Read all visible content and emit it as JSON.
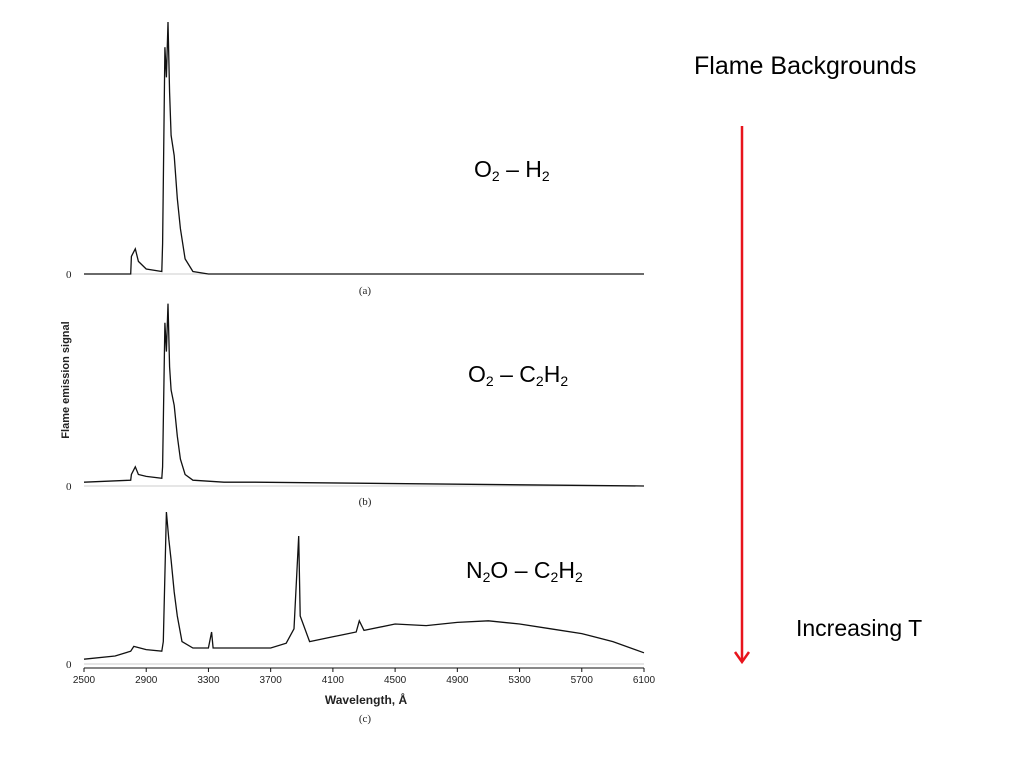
{
  "slide": {
    "title": "Flame Backgrounds",
    "trend_label": "Increasing T",
    "arrow_color": "#e8141c",
    "flames": [
      {
        "ox1": "O",
        "ox1_sub": "2",
        "dash": " – ",
        "fuel1": "H",
        "fuel1_sub": "2",
        "fuel2": "",
        "fuel2_sub": ""
      },
      {
        "ox1": "O",
        "ox1_sub": "2",
        "dash": " – ",
        "fuel1": "C",
        "fuel1_sub": "2",
        "fuel2": "H",
        "fuel2_sub": "2"
      },
      {
        "ox1": "N",
        "ox1_sub": "2",
        "ox2": "O",
        "dash": " – ",
        "fuel1": "C",
        "fuel1_sub": "2",
        "fuel2": "H",
        "fuel2_sub": "2"
      }
    ]
  },
  "chart_data": {
    "type": "line",
    "ylabel": "Flame emission signal",
    "xlabel": "Wavelength, Å",
    "xlim": [
      2500,
      6100
    ],
    "x_ticks": [
      "2500",
      "2900",
      "3300",
      "3700",
      "4100",
      "4500",
      "4900",
      "5300",
      "5700",
      "6100"
    ],
    "zero_label": "0",
    "panels": [
      {
        "label": "(a)",
        "points": [
          [
            2500,
            0
          ],
          [
            2800,
            0
          ],
          [
            2805,
            0.07
          ],
          [
            2830,
            0.1
          ],
          [
            2850,
            0.05
          ],
          [
            2900,
            0.02
          ],
          [
            3000,
            0.01
          ],
          [
            3005,
            0.12
          ],
          [
            3020,
            0.9
          ],
          [
            3030,
            0.78
          ],
          [
            3040,
            1.0
          ],
          [
            3050,
            0.72
          ],
          [
            3060,
            0.55
          ],
          [
            3080,
            0.47
          ],
          [
            3100,
            0.3
          ],
          [
            3120,
            0.18
          ],
          [
            3150,
            0.06
          ],
          [
            3200,
            0.01
          ],
          [
            3300,
            0
          ],
          [
            6100,
            0
          ]
        ]
      },
      {
        "label": "(b)",
        "points": [
          [
            2500,
            0.02
          ],
          [
            2800,
            0.03
          ],
          [
            2805,
            0.06
          ],
          [
            2830,
            0.1
          ],
          [
            2850,
            0.06
          ],
          [
            2900,
            0.05
          ],
          [
            3000,
            0.04
          ],
          [
            3005,
            0.1
          ],
          [
            3020,
            0.85
          ],
          [
            3030,
            0.7
          ],
          [
            3040,
            0.95
          ],
          [
            3050,
            0.62
          ],
          [
            3060,
            0.5
          ],
          [
            3080,
            0.42
          ],
          [
            3100,
            0.26
          ],
          [
            3120,
            0.14
          ],
          [
            3150,
            0.06
          ],
          [
            3200,
            0.03
          ],
          [
            3400,
            0.02
          ],
          [
            3600,
            0.02
          ],
          [
            6100,
            0
          ]
        ]
      },
      {
        "label": "(c)",
        "points": [
          [
            2500,
            0.03
          ],
          [
            2700,
            0.05
          ],
          [
            2800,
            0.08
          ],
          [
            2820,
            0.11
          ],
          [
            2900,
            0.09
          ],
          [
            3000,
            0.08
          ],
          [
            3010,
            0.14
          ],
          [
            3030,
            0.95
          ],
          [
            3045,
            0.78
          ],
          [
            3060,
            0.65
          ],
          [
            3080,
            0.45
          ],
          [
            3100,
            0.3
          ],
          [
            3130,
            0.14
          ],
          [
            3200,
            0.1
          ],
          [
            3300,
            0.1
          ],
          [
            3320,
            0.2
          ],
          [
            3330,
            0.1
          ],
          [
            3600,
            0.1
          ],
          [
            3700,
            0.1
          ],
          [
            3800,
            0.13
          ],
          [
            3850,
            0.22
          ],
          [
            3880,
            0.8
          ],
          [
            3890,
            0.3
          ],
          [
            3950,
            0.14
          ],
          [
            4100,
            0.17
          ],
          [
            4250,
            0.2
          ],
          [
            4270,
            0.27
          ],
          [
            4300,
            0.21
          ],
          [
            4500,
            0.25
          ],
          [
            4700,
            0.24
          ],
          [
            4900,
            0.26
          ],
          [
            5100,
            0.27
          ],
          [
            5300,
            0.25
          ],
          [
            5500,
            0.22
          ],
          [
            5700,
            0.19
          ],
          [
            5900,
            0.14
          ],
          [
            6100,
            0.07
          ]
        ]
      }
    ]
  }
}
